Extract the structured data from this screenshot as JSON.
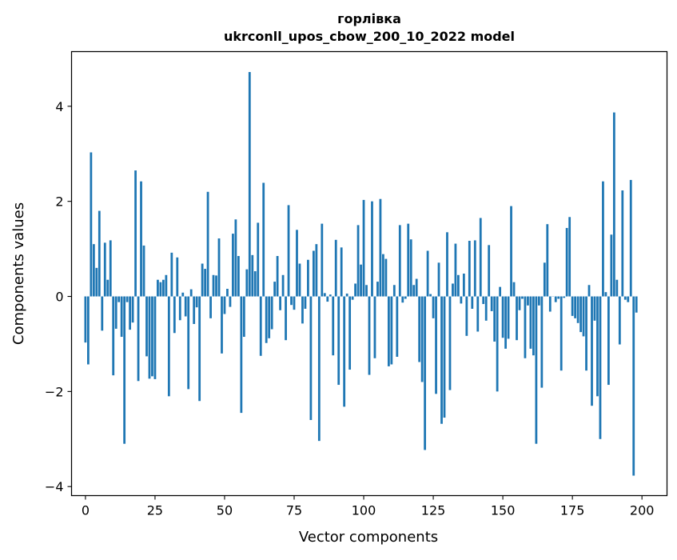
{
  "chart_data": {
    "type": "bar",
    "title": "горлівка\nukrconll_upos_cbow_200_10_2022 model",
    "title_lines": [
      "горлівка",
      "ukrconll_upos_cbow_200_10_2022 model"
    ],
    "xlabel": "Vector components",
    "ylabel": "Components values",
    "xlim": [
      -5,
      209
    ],
    "ylim": [
      -4.19,
      5.15
    ],
    "xticks": [
      0,
      25,
      50,
      75,
      100,
      125,
      150,
      175,
      200
    ],
    "xtick_labels": [
      "0",
      "25",
      "50",
      "75",
      "100",
      "125",
      "150",
      "175",
      "200"
    ],
    "yticks": [
      -4,
      -2,
      0,
      2,
      4
    ],
    "ytick_labels": [
      "−4",
      "−2",
      "0",
      "2",
      "4"
    ],
    "grid": false,
    "legend": "none",
    "bar_color": "#1f77b4",
    "values": [
      -0.97,
      -1.43,
      3.03,
      1.1,
      0.6,
      1.8,
      -0.72,
      1.13,
      0.35,
      1.18,
      -1.66,
      -0.68,
      -0.12,
      -0.85,
      -3.1,
      -0.12,
      -0.7,
      -0.55,
      2.65,
      -1.78,
      2.42,
      1.07,
      -1.26,
      -1.73,
      -1.68,
      -1.74,
      0.35,
      0.3,
      0.35,
      0.45,
      -2.1,
      0.92,
      -0.77,
      0.82,
      -0.5,
      0.08,
      -0.42,
      -1.95,
      0.15,
      -0.58,
      -0.23,
      -2.2,
      0.69,
      0.58,
      2.2,
      -0.46,
      0.45,
      0.44,
      1.22,
      -1.2,
      -0.37,
      0.16,
      -0.22,
      1.32,
      1.62,
      0.85,
      -2.45,
      -0.85,
      0.57,
      4.72,
      0.87,
      0.53,
      1.55,
      -1.25,
      2.39,
      -0.98,
      -0.88,
      -0.69,
      0.31,
      0.85,
      -0.29,
      0.45,
      -0.92,
      1.92,
      -0.18,
      -0.28,
      1.4,
      0.69,
      -0.57,
      -0.26,
      0.77,
      -2.6,
      0.96,
      1.1,
      -3.04,
      1.53,
      0.07,
      -0.11,
      0.04,
      -1.24,
      1.19,
      -1.86,
      1.03,
      -2.32,
      0.06,
      -1.54,
      -0.07,
      0.27,
      1.5,
      0.67,
      2.03,
      0.24,
      -1.65,
      2.0,
      -1.3,
      0.31,
      2.05,
      0.89,
      0.79,
      -1.47,
      -1.43,
      0.24,
      -1.27,
      1.5,
      -0.13,
      -0.05,
      1.53,
      1.2,
      0.24,
      0.37,
      -1.38,
      -1.8,
      -3.23,
      0.96,
      0.05,
      -0.46,
      -2.05,
      0.71,
      -2.68,
      -2.55,
      1.35,
      -1.97,
      0.27,
      1.11,
      0.45,
      -0.15,
      0.48,
      -0.83,
      1.17,
      -0.26,
      1.18,
      -0.74,
      1.65,
      -0.16,
      -0.51,
      1.08,
      -0.31,
      -0.95,
      -2.0,
      0.2,
      -0.87,
      -1.1,
      -0.89,
      1.9,
      0.3,
      -0.92,
      -0.29,
      -0.05,
      -1.3,
      -0.19,
      -1.1,
      -1.24,
      -3.1,
      -0.19,
      -1.92,
      0.71,
      1.52,
      -0.32,
      0.0,
      -0.12,
      -0.05,
      -1.56,
      -0.03,
      1.44,
      1.67,
      -0.41,
      -0.46,
      -0.56,
      -0.75,
      -0.84,
      -1.56,
      0.24,
      -2.3,
      -0.51,
      -2.1,
      -3.0,
      2.42,
      0.09,
      -1.86,
      1.3,
      3.87,
      0.35,
      -1.01,
      2.23,
      -0.07,
      -0.12,
      2.45,
      -3.77,
      -0.34
    ]
  }
}
